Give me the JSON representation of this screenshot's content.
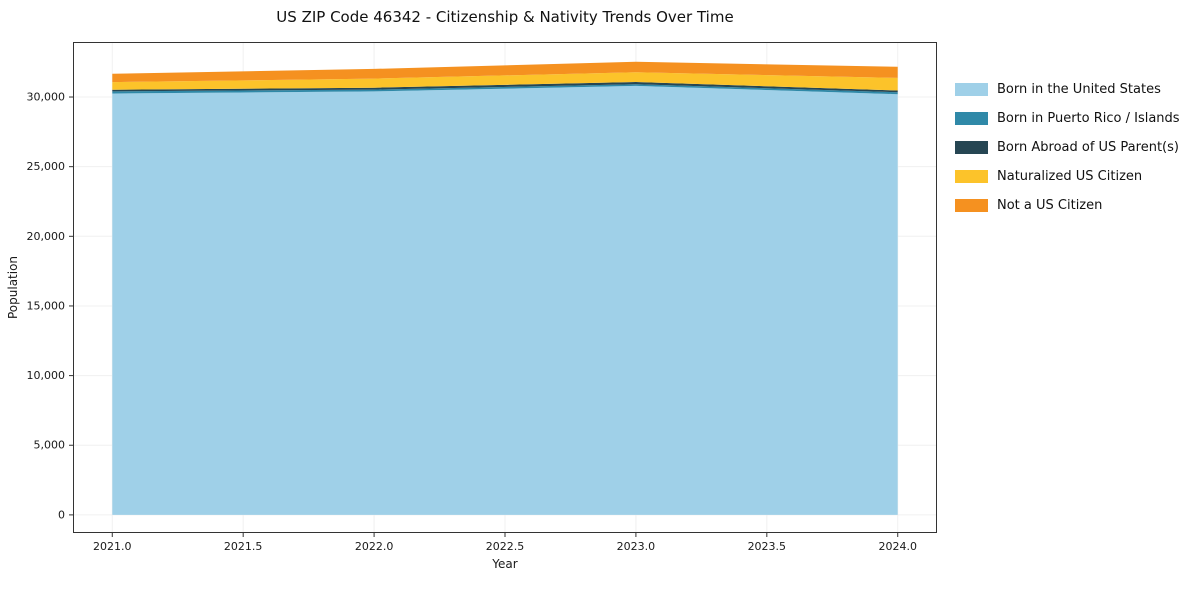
{
  "chart_data": {
    "type": "area",
    "stacked": true,
    "title": "US ZIP Code 46342 - Citizenship & Nativity Trends Over Time",
    "xlabel": "Year",
    "ylabel": "Population",
    "x": [
      2021,
      2022,
      2023,
      2024
    ],
    "series": [
      {
        "name": "Born in the United States",
        "color": "#9fd0e8",
        "values": [
          30250,
          30400,
          30800,
          30200
        ]
      },
      {
        "name": "Born in Puerto Rico / Islands",
        "color": "#2f89a8",
        "values": [
          150,
          130,
          120,
          140
        ]
      },
      {
        "name": "Born Abroad of US Parent(s)",
        "color": "#264653",
        "values": [
          120,
          140,
          160,
          130
        ]
      },
      {
        "name": "Naturalized US Citizen",
        "color": "#fcc32a",
        "values": [
          550,
          650,
          700,
          900
        ]
      },
      {
        "name": "Not a US Citizen",
        "color": "#f59120",
        "values": [
          600,
          700,
          750,
          800
        ]
      }
    ],
    "xticks": [
      2021.0,
      2021.5,
      2022.0,
      2022.5,
      2023.0,
      2023.5,
      2024.0
    ],
    "xtick_labels": [
      "2021.0",
      "2021.5",
      "2022.0",
      "2022.5",
      "2023.0",
      "2023.5",
      "2024.0"
    ],
    "yticks": [
      0,
      5000,
      10000,
      15000,
      20000,
      25000,
      30000
    ],
    "ytick_labels": [
      "0",
      "5,000",
      "10,000",
      "15,000",
      "20,000",
      "25,000",
      "30,000"
    ],
    "xlim": [
      2020.85,
      2024.15
    ],
    "ylim": [
      -1300,
      33950
    ],
    "grid": true,
    "grid_color": "#f0f0f0",
    "spine_color": "#333333",
    "legend_position": "right"
  }
}
